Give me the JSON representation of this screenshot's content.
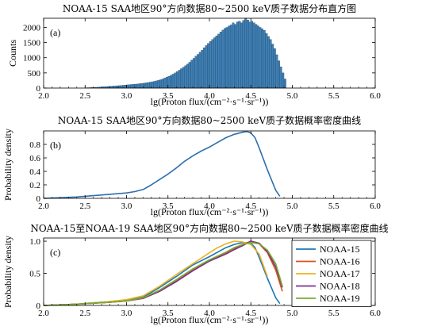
{
  "chart_data": [
    {
      "type": "bar",
      "panel_label": "(a)",
      "title": "NOAA-15 SAA地区90°方向数据80~2500 keV质子数据分布直方图",
      "xlabel": "lg(Proton flux/(cm⁻²·s⁻¹·sr⁻¹))",
      "ylabel": "Counts",
      "xlim": [
        2.0,
        6.0
      ],
      "ylim": [
        0,
        2300
      ],
      "xticks": [
        "2.0",
        "2.5",
        "3.0",
        "3.5",
        "4.0",
        "4.5",
        "5.0",
        "5.5",
        "6.0"
      ],
      "yticks": [
        "0",
        "500",
        "1000",
        "1500",
        "2000"
      ],
      "bar_color": "#3f7fb4",
      "bin_width": 0.025,
      "bin_start": 2.0,
      "values": [
        0,
        0,
        0,
        0,
        0,
        0,
        0,
        0,
        0,
        0,
        0,
        0,
        0,
        0,
        0,
        0,
        0,
        0,
        0,
        0,
        10,
        12,
        15,
        18,
        22,
        26,
        30,
        35,
        40,
        45,
        50,
        55,
        60,
        65,
        70,
        75,
        80,
        86,
        92,
        100,
        106,
        112,
        118,
        124,
        130,
        137,
        145,
        153,
        162,
        172,
        183,
        195,
        208,
        222,
        238,
        255,
        275,
        300,
        330,
        360,
        390,
        420,
        460,
        500,
        540,
        590,
        640,
        690,
        740,
        790,
        850,
        920,
        980,
        1050,
        1110,
        1180,
        1250,
        1330,
        1400,
        1470,
        1540,
        1600,
        1660,
        1720,
        1780,
        1850,
        1910,
        1970,
        2000,
        2050,
        2080,
        2150,
        2100,
        2180,
        2200,
        2150,
        2230,
        2300,
        2240,
        2180,
        2200,
        2150,
        2100,
        2050,
        2000,
        1950,
        1900,
        1800,
        1700,
        1600,
        1450,
        1300,
        1100,
        900,
        700,
        500,
        300,
        0,
        0,
        0
      ]
    },
    {
      "type": "line",
      "panel_label": "(b)",
      "title": "NOAA-15 SAA地区90°方向数据80~2500 keV质子数据概率密度曲线",
      "xlabel": "lg(Proton flux/(cm⁻²·s⁻¹·sr⁻¹))",
      "ylabel": "Probability density",
      "xlim": [
        2.0,
        6.0
      ],
      "ylim": [
        0,
        1.0
      ],
      "xticks": [
        "2.0",
        "2.5",
        "3.0",
        "3.5",
        "4.0",
        "4.5",
        "5.0",
        "5.5",
        "6.0"
      ],
      "yticks": [
        "0",
        "0.2",
        "0.4",
        "0.6",
        "0.8"
      ],
      "series": [
        {
          "color": "#2d6fae",
          "x": [
            2.0,
            2.2,
            2.4,
            2.6,
            2.8,
            3.0,
            3.1,
            3.2,
            3.3,
            3.4,
            3.5,
            3.6,
            3.7,
            3.8,
            3.9,
            4.0,
            4.1,
            4.2,
            4.3,
            4.4,
            4.45,
            4.5,
            4.55,
            4.6,
            4.7,
            4.8,
            4.85
          ],
          "y": [
            0.0,
            0.01,
            0.02,
            0.04,
            0.06,
            0.08,
            0.1,
            0.13,
            0.2,
            0.28,
            0.36,
            0.45,
            0.55,
            0.63,
            0.7,
            0.76,
            0.83,
            0.9,
            0.95,
            0.98,
            0.99,
            0.97,
            0.9,
            0.75,
            0.42,
            0.12,
            0.03
          ]
        }
      ]
    },
    {
      "type": "line",
      "panel_label": "(c)",
      "title": "NOAA-15至NOAA-19 SAA地区90°方向数据80~2500 keV质子数据概率密度曲线",
      "xlabel": "lg(Proton flux/(cm⁻²·s⁻¹·sr⁻¹))",
      "ylabel": "Probability density",
      "xlim": [
        2.0,
        6.0
      ],
      "ylim": [
        0,
        1.05
      ],
      "xticks": [
        "2.0",
        "2.5",
        "3.0",
        "3.5",
        "4.0",
        "4.5",
        "5.0",
        "5.5",
        "6.0"
      ],
      "yticks": [
        "0",
        "0.5",
        "1.0"
      ],
      "legend_position": "right",
      "series": [
        {
          "name": "NOAA-15",
          "color": "#1f77b4",
          "x": [
            2.0,
            2.4,
            2.8,
            3.0,
            3.2,
            3.4,
            3.6,
            3.8,
            4.0,
            4.2,
            4.3,
            4.4,
            4.5,
            4.55,
            4.6,
            4.7,
            4.8,
            4.85
          ],
          "y": [
            0.0,
            0.02,
            0.06,
            0.08,
            0.13,
            0.28,
            0.45,
            0.63,
            0.76,
            0.9,
            0.95,
            0.98,
            0.97,
            0.9,
            0.75,
            0.42,
            0.12,
            0.03
          ]
        },
        {
          "name": "NOAA-16",
          "color": "#d95319",
          "x": [
            2.0,
            2.4,
            2.8,
            3.0,
            3.2,
            3.4,
            3.6,
            3.8,
            4.0,
            4.2,
            4.3,
            4.4,
            4.5,
            4.6,
            4.7,
            4.8,
            4.88
          ],
          "y": [
            0.0,
            0.02,
            0.05,
            0.07,
            0.11,
            0.22,
            0.38,
            0.55,
            0.7,
            0.82,
            0.89,
            0.95,
            1.0,
            0.96,
            0.82,
            0.55,
            0.22
          ]
        },
        {
          "name": "NOAA-17",
          "color": "#edb120",
          "x": [
            2.0,
            2.4,
            2.8,
            3.0,
            3.2,
            3.4,
            3.6,
            3.8,
            4.0,
            4.1,
            4.2,
            4.3,
            4.4,
            4.5,
            4.6,
            4.7
          ],
          "y": [
            0.0,
            0.02,
            0.06,
            0.09,
            0.15,
            0.3,
            0.48,
            0.65,
            0.82,
            0.9,
            0.96,
            1.0,
            0.99,
            0.95,
            0.8,
            0.45
          ]
        },
        {
          "name": "NOAA-18",
          "color": "#7e2f8e",
          "x": [
            2.0,
            2.4,
            2.8,
            3.0,
            3.2,
            3.4,
            3.6,
            3.8,
            4.0,
            4.2,
            4.3,
            4.4,
            4.5,
            4.6,
            4.7,
            4.8,
            4.88
          ],
          "y": [
            0.0,
            0.02,
            0.05,
            0.07,
            0.11,
            0.22,
            0.37,
            0.54,
            0.69,
            0.8,
            0.87,
            0.93,
            1.0,
            0.97,
            0.84,
            0.6,
            0.28
          ]
        },
        {
          "name": "NOAA-19",
          "color": "#77ac30",
          "x": [
            2.0,
            2.4,
            2.8,
            3.0,
            3.2,
            3.4,
            3.6,
            3.8,
            4.0,
            4.2,
            4.3,
            4.4,
            4.5,
            4.6,
            4.7,
            4.8,
            4.88
          ],
          "y": [
            0.0,
            0.02,
            0.05,
            0.07,
            0.12,
            0.24,
            0.4,
            0.57,
            0.71,
            0.83,
            0.9,
            0.95,
            0.98,
            0.96,
            0.86,
            0.65,
            0.3
          ]
        }
      ]
    }
  ]
}
